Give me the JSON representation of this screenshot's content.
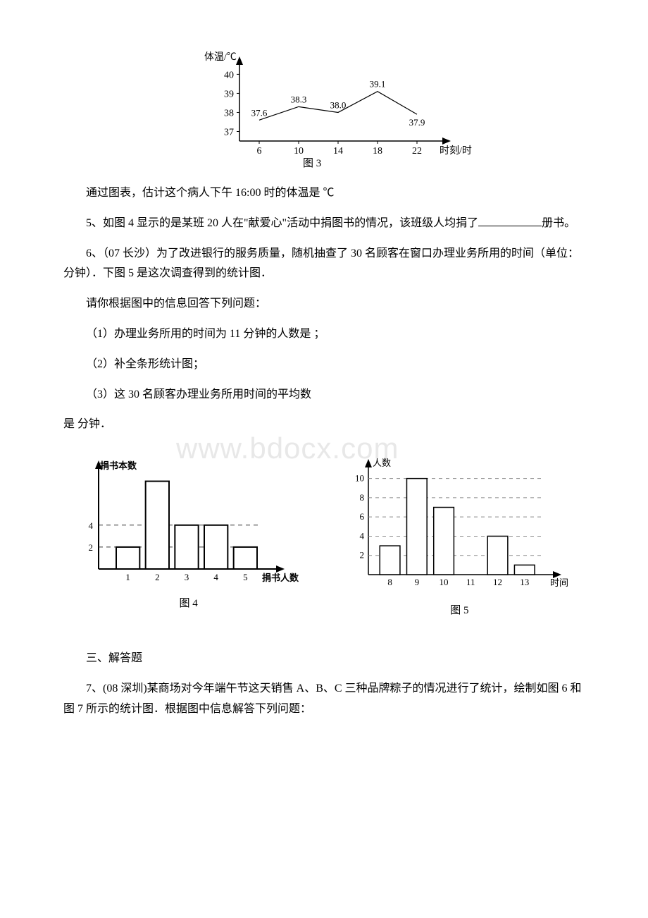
{
  "fig3": {
    "type": "line",
    "ylabel": "体温/℃",
    "xlabel": "时刻/时",
    "x": [
      6,
      10,
      14,
      18,
      22
    ],
    "y": [
      37.6,
      38.3,
      38.0,
      39.1,
      37.9
    ],
    "y_labels": [
      "37.6",
      "38.3",
      "38.0",
      "39.1",
      "37.9"
    ],
    "yticks": [
      37,
      38,
      39,
      40
    ],
    "xticks": [
      "6",
      "10",
      "14",
      "18",
      "22"
    ],
    "caption": "图 3",
    "axis_color": "#000",
    "line_color": "#000",
    "line_width": 1.2,
    "label_fontsize": 14
  },
  "p4": "通过图表，估计这个病人下午 16:00 时的体温是  ℃",
  "p5_a": "5、如图 4 显示的是某班 20 人在\"献爱心\"活动中捐图书的情况，该班级人均捐了",
  "p5_b": "册书。",
  "p6": "6、（07 长沙）为了改进银行的服务质量，随机抽查了 30 名顾客在窗口办理业务所用的时间（单位：分钟）．下图 5 是这次调查得到的统计图．",
  "p7": "请你根据图中的信息回答下列问题：",
  "p8": "（1）办理业务所用的时间为 11 分钟的人数是 ；",
  "p9": "（2）补全条形统计图；",
  "p10": "（3）这 30 名顾客办理业务所用时间的平均数",
  "p11": "是 分钟．",
  "fig4": {
    "type": "bar",
    "ylabel": "捐书本数",
    "xlabel": "捐书人数",
    "x": [
      1,
      2,
      3,
      4,
      5
    ],
    "y": [
      2,
      8,
      4,
      4,
      2
    ],
    "yticks": [
      2,
      4
    ],
    "xticks": [
      "1",
      "2",
      "3",
      "4",
      "5"
    ],
    "bar_width": 0.8,
    "bar_fill": "#ffffff",
    "bar_stroke": "#000000",
    "axis_color": "#000",
    "caption": "图 4",
    "label_fontsize": 13
  },
  "fig5": {
    "type": "bar",
    "ylabel": "人数",
    "xlabel": "时间",
    "x": [
      8,
      9,
      10,
      12,
      13
    ],
    "y": [
      3,
      10,
      7,
      4,
      1
    ],
    "yticks": [
      2,
      4,
      6,
      8,
      10
    ],
    "xticks": [
      "8",
      "9",
      "10",
      "11",
      "12",
      "13"
    ],
    "bar_width": 0.75,
    "bar_fill": "#ffffff",
    "bar_stroke": "#000000",
    "axis_color": "#000",
    "dash_color": "#888",
    "caption": "图 5",
    "label_fontsize": 13
  },
  "h3": "三、解答题",
  "p12": "7、(08 深圳)某商场对今年端午节这天销售 A、B、C 三种品牌粽子的情况进行了统计，绘制如图 6 和图 7 所示的统计图．根据图中信息解答下列问题：",
  "watermark": "www.bdocx.com"
}
